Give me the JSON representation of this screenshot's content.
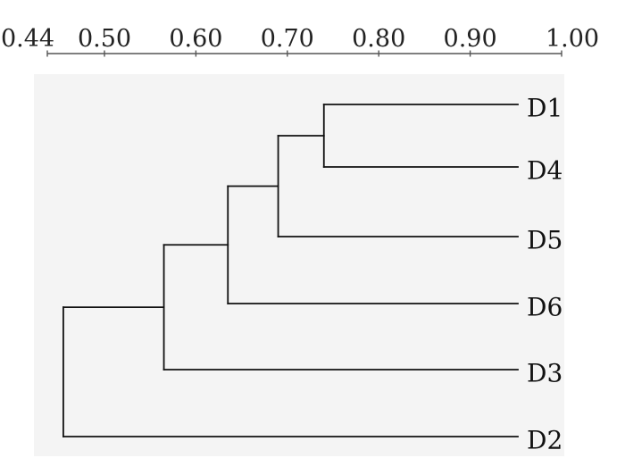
{
  "chart_data": {
    "type": "dendrogram",
    "axis": {
      "position": "top",
      "range": [
        0.44,
        1.0
      ],
      "ticks": [
        0.44,
        0.5,
        0.6,
        0.7,
        0.8,
        0.9,
        1.0
      ],
      "tick_labels": [
        "0.44",
        "0.50",
        "0.60",
        "0.70",
        "0.80",
        "0.90",
        "1.00"
      ]
    },
    "leaves": [
      "D1",
      "D4",
      "D5",
      "D6",
      "D3",
      "D2"
    ],
    "merges": [
      {
        "members": [
          "D1",
          "D4"
        ],
        "similarity": 0.74
      },
      {
        "members": [
          "D1",
          "D4",
          "D5"
        ],
        "similarity": 0.69
      },
      {
        "members": [
          "D1",
          "D4",
          "D5",
          "D6"
        ],
        "similarity": 0.635
      },
      {
        "members": [
          "D1",
          "D4",
          "D5",
          "D6",
          "D3"
        ],
        "similarity": 0.565
      },
      {
        "members": [
          "D1",
          "D4",
          "D5",
          "D6",
          "D3",
          "D2"
        ],
        "similarity": 0.455
      }
    ]
  }
}
